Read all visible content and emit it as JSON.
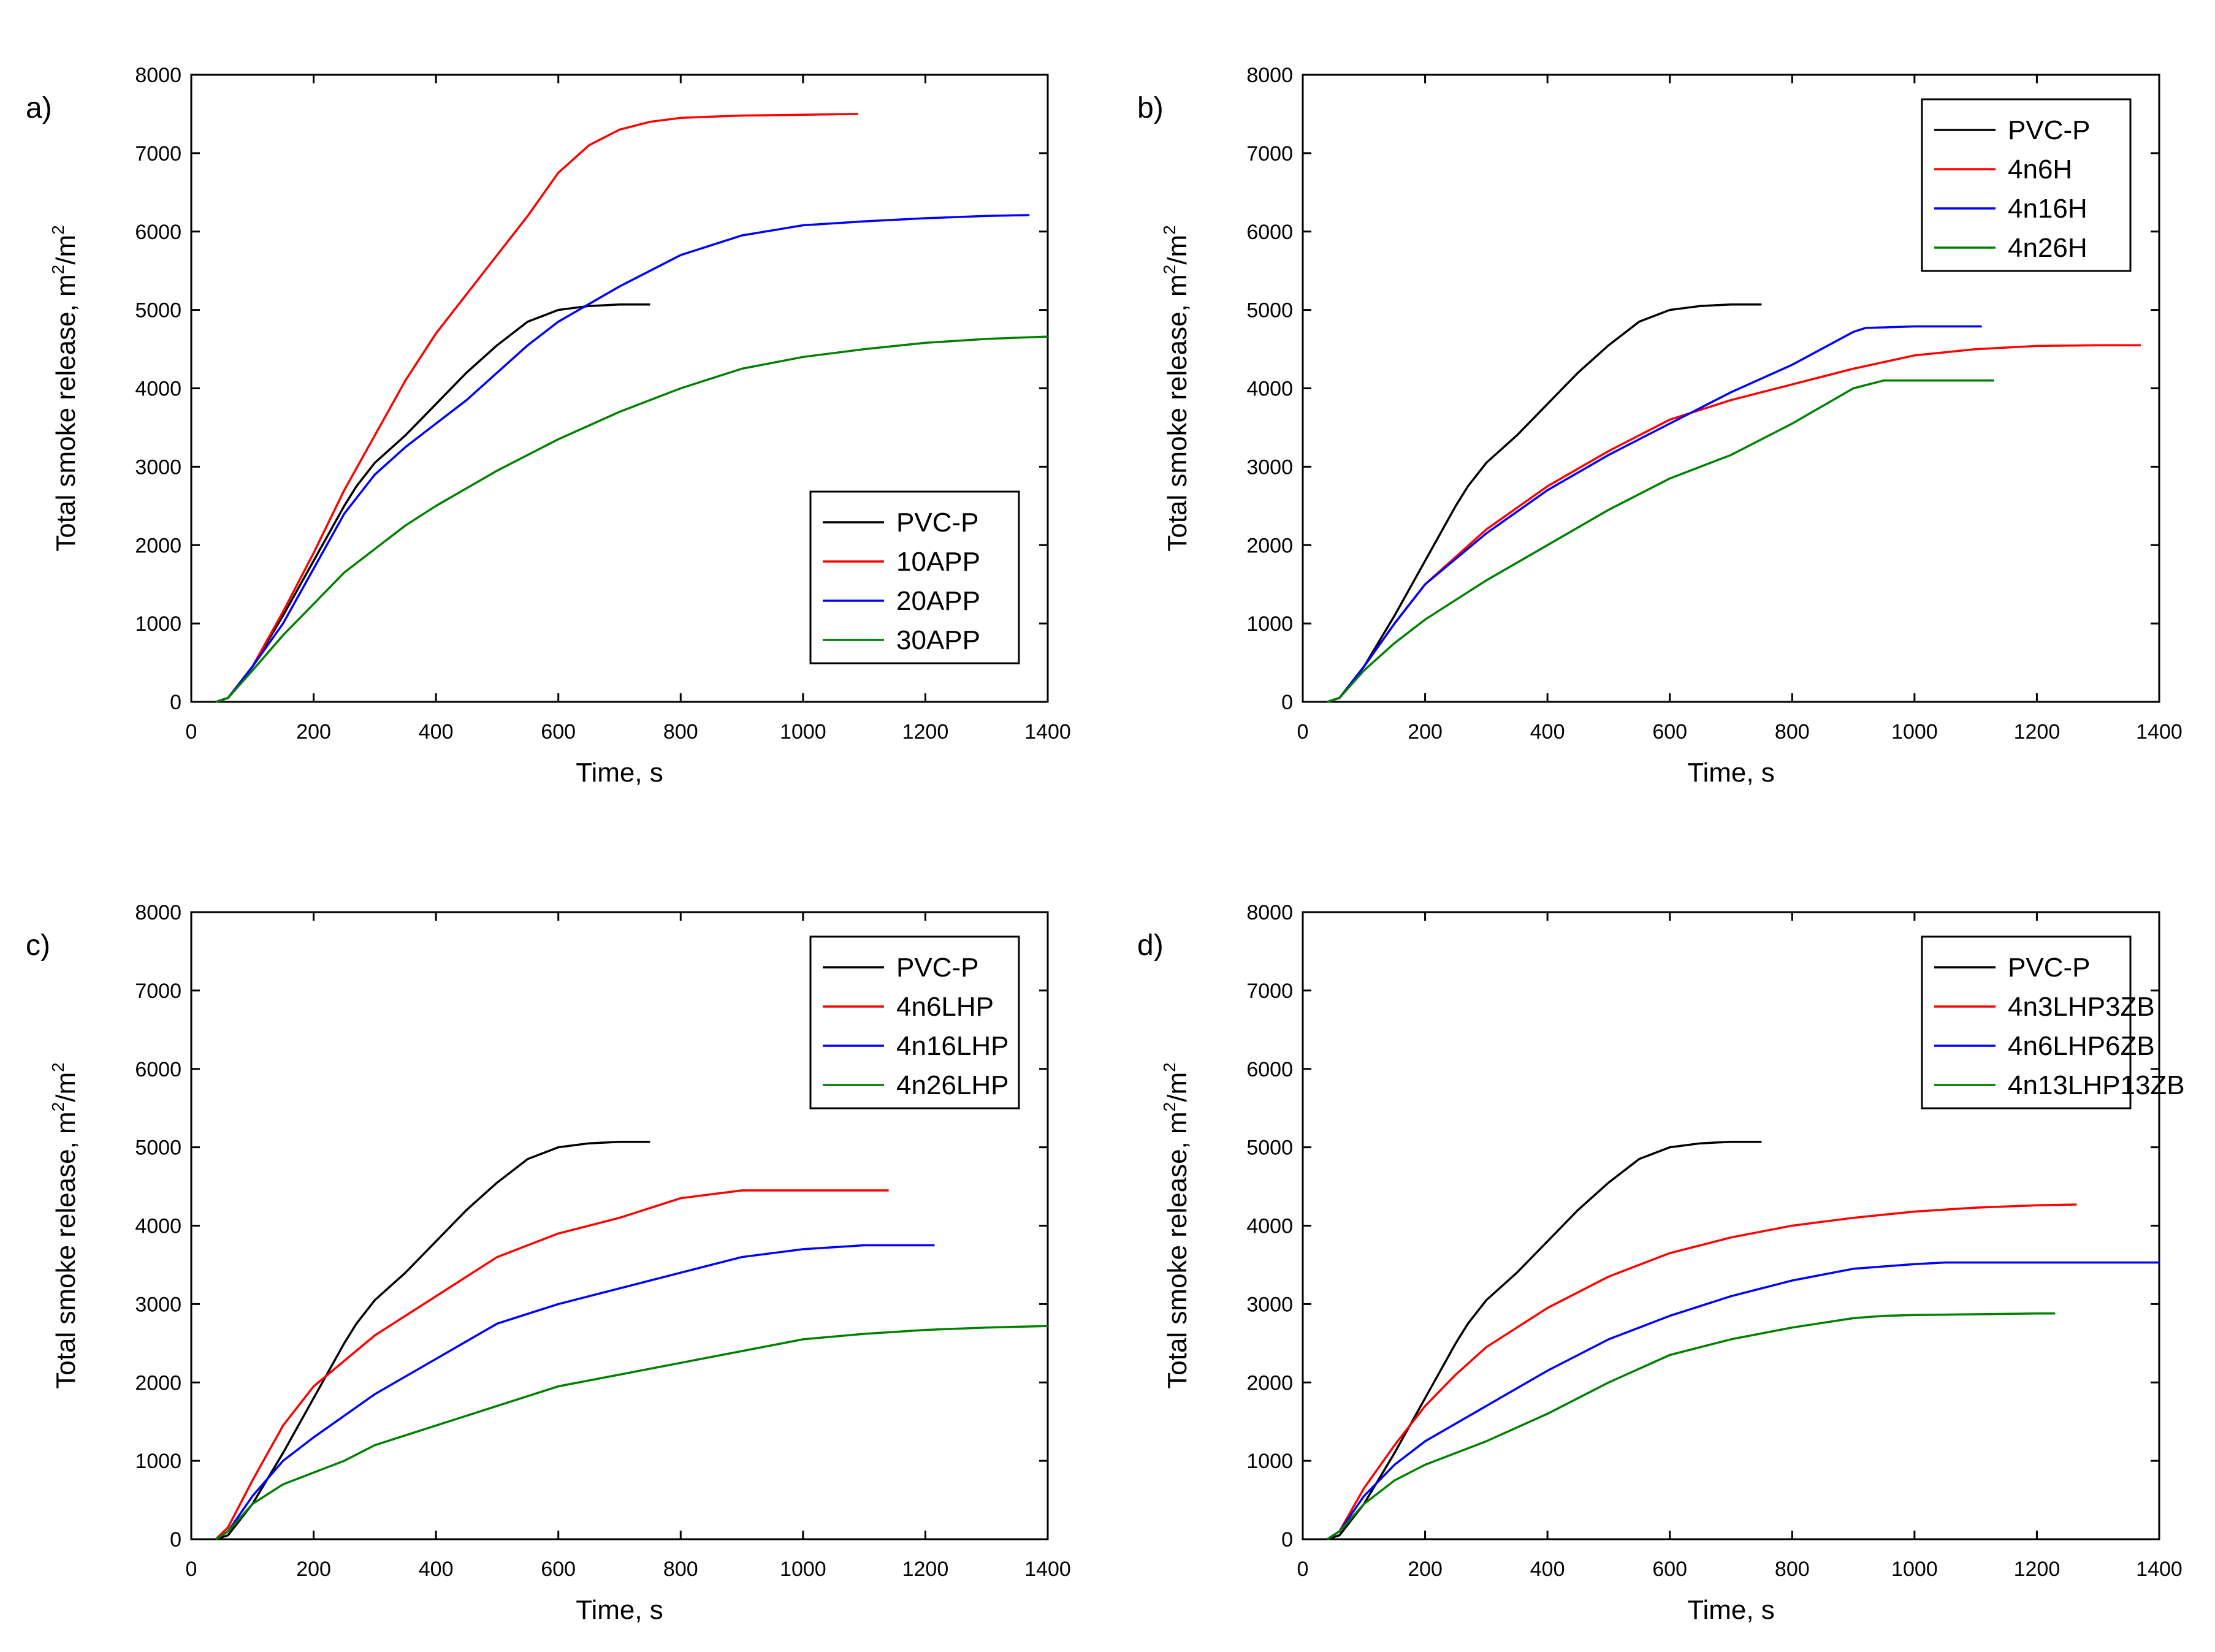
{
  "chart_data": [
    {
      "type": "line",
      "panel_label": "a)",
      "xlabel": "Time, s",
      "ylabel": "Total smoke release, m",
      "ylabel_units": [
        "2",
        "/m",
        "2"
      ],
      "xlim": [
        0,
        1400
      ],
      "ylim": [
        0,
        8000
      ],
      "xticks": [
        0,
        200,
        400,
        600,
        800,
        1000,
        1200,
        1400
      ],
      "yticks": [
        0,
        1000,
        2000,
        3000,
        4000,
        5000,
        6000,
        7000,
        8000
      ],
      "legend_position": "bottom-right",
      "series": [
        {
          "name": "PVC-P",
          "color": "#000000",
          "x": [
            40,
            60,
            100,
            150,
            200,
            250,
            270,
            300,
            350,
            400,
            450,
            500,
            550,
            600,
            650,
            700,
            750
          ],
          "y": [
            0,
            50,
            450,
            1100,
            1800,
            2500,
            2750,
            3050,
            3400,
            3800,
            4200,
            4550,
            4850,
            5000,
            5050,
            5070,
            5070
          ]
        },
        {
          "name": "10APP",
          "color": "#ff0000",
          "x": [
            40,
            60,
            100,
            150,
            200,
            250,
            300,
            350,
            400,
            450,
            500,
            550,
            600,
            650,
            700,
            750,
            800,
            900,
            1000,
            1090
          ],
          "y": [
            0,
            50,
            450,
            1150,
            1900,
            2700,
            3400,
            4100,
            4700,
            5200,
            5700,
            6200,
            6750,
            7100,
            7300,
            7400,
            7450,
            7480,
            7490,
            7500
          ]
        },
        {
          "name": "20APP",
          "color": "#0000ff",
          "x": [
            40,
            60,
            100,
            150,
            200,
            250,
            300,
            350,
            400,
            450,
            500,
            550,
            600,
            700,
            800,
            900,
            1000,
            1100,
            1200,
            1300,
            1370
          ],
          "y": [
            0,
            50,
            450,
            1000,
            1700,
            2400,
            2900,
            3250,
            3550,
            3850,
            4200,
            4550,
            4850,
            5300,
            5700,
            5950,
            6080,
            6130,
            6170,
            6200,
            6210
          ]
        },
        {
          "name": "30APP",
          "color": "#008000",
          "x": [
            40,
            60,
            100,
            150,
            200,
            250,
            300,
            350,
            400,
            500,
            600,
            700,
            800,
            900,
            1000,
            1100,
            1200,
            1300,
            1400
          ],
          "y": [
            0,
            50,
            400,
            850,
            1250,
            1650,
            1950,
            2250,
            2500,
            2950,
            3350,
            3700,
            4000,
            4250,
            4400,
            4500,
            4580,
            4630,
            4660
          ]
        }
      ]
    },
    {
      "type": "line",
      "panel_label": "b)",
      "xlabel": "Time, s",
      "ylabel": "Total smoke release, m",
      "ylabel_units": [
        "2",
        "/m",
        "2"
      ],
      "xlim": [
        0,
        1400
      ],
      "ylim": [
        0,
        8000
      ],
      "xticks": [
        0,
        200,
        400,
        600,
        800,
        1000,
        1200,
        1400
      ],
      "yticks": [
        0,
        1000,
        2000,
        3000,
        4000,
        5000,
        6000,
        7000,
        8000
      ],
      "legend_position": "top-right",
      "series": [
        {
          "name": "PVC-P",
          "color": "#000000",
          "x": [
            40,
            60,
            100,
            150,
            200,
            250,
            270,
            300,
            350,
            400,
            450,
            500,
            550,
            600,
            650,
            700,
            750
          ],
          "y": [
            0,
            50,
            450,
            1100,
            1800,
            2500,
            2750,
            3050,
            3400,
            3800,
            4200,
            4550,
            4850,
            5000,
            5050,
            5070,
            5070
          ]
        },
        {
          "name": "4n6H",
          "color": "#ff0000",
          "x": [
            40,
            60,
            100,
            150,
            200,
            300,
            400,
            500,
            600,
            700,
            800,
            900,
            1000,
            1100,
            1200,
            1300,
            1370
          ],
          "y": [
            0,
            50,
            450,
            1000,
            1500,
            2200,
            2750,
            3200,
            3600,
            3850,
            4050,
            4250,
            4420,
            4500,
            4540,
            4550,
            4550
          ]
        },
        {
          "name": "4n16H",
          "color": "#0000ff",
          "x": [
            40,
            60,
            100,
            150,
            200,
            300,
            400,
            500,
            600,
            700,
            800,
            900,
            920,
            1000,
            1110
          ],
          "y": [
            0,
            50,
            450,
            1000,
            1500,
            2150,
            2700,
            3150,
            3550,
            3950,
            4300,
            4720,
            4770,
            4790,
            4790
          ]
        },
        {
          "name": "4n26H",
          "color": "#008000",
          "x": [
            40,
            60,
            100,
            150,
            200,
            300,
            400,
            500,
            600,
            700,
            800,
            900,
            950,
            1000,
            1130
          ],
          "y": [
            0,
            50,
            400,
            750,
            1050,
            1550,
            2000,
            2450,
            2850,
            3150,
            3550,
            4000,
            4100,
            4100,
            4100
          ]
        }
      ]
    },
    {
      "type": "line",
      "panel_label": "c)",
      "xlabel": "Time, s",
      "ylabel": "Total smoke release, m",
      "ylabel_units": [
        "2",
        "/m",
        "2"
      ],
      "xlim": [
        0,
        1400
      ],
      "ylim": [
        0,
        8000
      ],
      "xticks": [
        0,
        200,
        400,
        600,
        800,
        1000,
        1200,
        1400
      ],
      "yticks": [
        0,
        1000,
        2000,
        3000,
        4000,
        5000,
        6000,
        7000,
        8000
      ],
      "legend_position": "top-right",
      "series": [
        {
          "name": "PVC-P",
          "color": "#000000",
          "x": [
            40,
            60,
            100,
            150,
            200,
            250,
            270,
            300,
            350,
            400,
            450,
            500,
            550,
            600,
            650,
            700,
            750
          ],
          "y": [
            0,
            50,
            450,
            1100,
            1800,
            2500,
            2750,
            3050,
            3400,
            3800,
            4200,
            4550,
            4850,
            5000,
            5050,
            5070,
            5070
          ]
        },
        {
          "name": "4n6LHP",
          "color": "#ff0000",
          "x": [
            40,
            60,
            100,
            150,
            200,
            300,
            400,
            500,
            600,
            700,
            800,
            900,
            1000,
            1140
          ],
          "y": [
            0,
            150,
            750,
            1450,
            1950,
            2600,
            3100,
            3600,
            3900,
            4100,
            4350,
            4450,
            4450,
            4450
          ]
        },
        {
          "name": "4n16LHP",
          "color": "#0000ff",
          "x": [
            40,
            60,
            100,
            150,
            200,
            300,
            400,
            500,
            600,
            700,
            800,
            900,
            1000,
            1100,
            1215
          ],
          "y": [
            0,
            100,
            550,
            1000,
            1300,
            1850,
            2300,
            2750,
            3000,
            3200,
            3400,
            3600,
            3700,
            3750,
            3750
          ]
        },
        {
          "name": "4n26LHP",
          "color": "#008000",
          "x": [
            40,
            60,
            100,
            150,
            200,
            250,
            300,
            400,
            500,
            600,
            700,
            800,
            900,
            1000,
            1100,
            1200,
            1300,
            1400
          ],
          "y": [
            0,
            100,
            450,
            700,
            850,
            1000,
            1200,
            1450,
            1700,
            1950,
            2100,
            2250,
            2400,
            2550,
            2620,
            2670,
            2700,
            2720
          ]
        }
      ]
    },
    {
      "type": "line",
      "panel_label": "d)",
      "xlabel": "Time, s",
      "ylabel": "Total smoke release, m",
      "ylabel_units": [
        "2",
        "/m",
        "2"
      ],
      "xlim": [
        0,
        1400
      ],
      "ylim": [
        0,
        8000
      ],
      "xticks": [
        0,
        200,
        400,
        600,
        800,
        1000,
        1200,
        1400
      ],
      "yticks": [
        0,
        1000,
        2000,
        3000,
        4000,
        5000,
        6000,
        7000,
        8000
      ],
      "legend_position": "top-right",
      "series": [
        {
          "name": "PVC-P",
          "color": "#000000",
          "x": [
            40,
            60,
            100,
            150,
            200,
            250,
            270,
            300,
            350,
            400,
            450,
            500,
            550,
            600,
            650,
            700,
            750
          ],
          "y": [
            0,
            50,
            450,
            1100,
            1800,
            2500,
            2750,
            3050,
            3400,
            3800,
            4200,
            4550,
            4850,
            5000,
            5050,
            5070,
            5070
          ]
        },
        {
          "name": "4n3LHP3ZB",
          "color": "#ff0000",
          "x": [
            40,
            60,
            100,
            150,
            200,
            250,
            300,
            400,
            500,
            600,
            700,
            800,
            900,
            1000,
            1100,
            1200,
            1265
          ],
          "y": [
            0,
            100,
            650,
            1200,
            1700,
            2100,
            2450,
            2950,
            3350,
            3650,
            3850,
            4000,
            4100,
            4180,
            4230,
            4260,
            4270
          ]
        },
        {
          "name": "4n6LHP6ZB",
          "color": "#0000ff",
          "x": [
            40,
            60,
            100,
            150,
            200,
            300,
            400,
            500,
            600,
            700,
            800,
            900,
            1000,
            1050,
            1100,
            1200,
            1300,
            1400
          ],
          "y": [
            0,
            100,
            550,
            950,
            1250,
            1700,
            2150,
            2550,
            2850,
            3100,
            3300,
            3450,
            3510,
            3530,
            3530,
            3530,
            3530,
            3530
          ]
        },
        {
          "name": "4n13LHP13ZB",
          "color": "#008000",
          "x": [
            40,
            60,
            100,
            150,
            200,
            300,
            400,
            500,
            600,
            700,
            800,
            900,
            950,
            1000,
            1100,
            1200,
            1230
          ],
          "y": [
            0,
            100,
            450,
            750,
            950,
            1250,
            1600,
            2000,
            2350,
            2550,
            2700,
            2820,
            2850,
            2860,
            2870,
            2880,
            2880
          ]
        }
      ]
    }
  ]
}
